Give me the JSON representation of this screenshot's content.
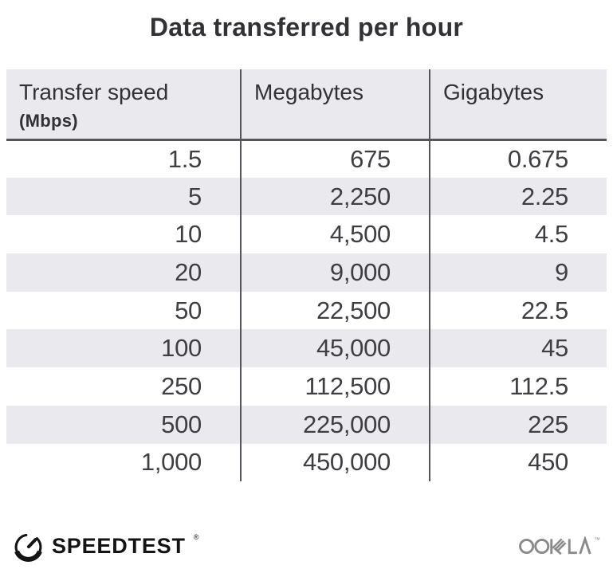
{
  "title": "Data transferred per hour",
  "table": {
    "columns": [
      {
        "label": "Transfer speed",
        "sublabel": "(Mbps)"
      },
      {
        "label": "Megabytes"
      },
      {
        "label": "Gigabytes"
      }
    ],
    "rows": [
      [
        "1.5",
        "675",
        "0.675"
      ],
      [
        "5",
        "2,250",
        "2.25"
      ],
      [
        "10",
        "4,500",
        "4.5"
      ],
      [
        "20",
        "9,000",
        "9"
      ],
      [
        "50",
        "22,500",
        "22.5"
      ],
      [
        "100",
        "45,000",
        "45"
      ],
      [
        "250",
        "112,500",
        "112.5"
      ],
      [
        "500",
        "225,000",
        "225"
      ],
      [
        "1,000",
        "450,000",
        "450"
      ]
    ]
  },
  "footer": {
    "speedtest_label": "SPEEDTEST",
    "speedtest_trademark": "®",
    "ookla_label": "OOKLA",
    "ookla_trademark": "™"
  },
  "icons": {
    "speedtest_gauge": "gauge-icon",
    "ookla_wordmark": "ookla-wordmark-icon"
  },
  "colors": {
    "title": "#323236",
    "text": "#3e3e43",
    "stripe": "#e9e9ee",
    "header_bg": "#e9e9ee",
    "divider": "#55555b",
    "logo_dark": "#141416",
    "ookla_gray": "#8a8a8d"
  }
}
